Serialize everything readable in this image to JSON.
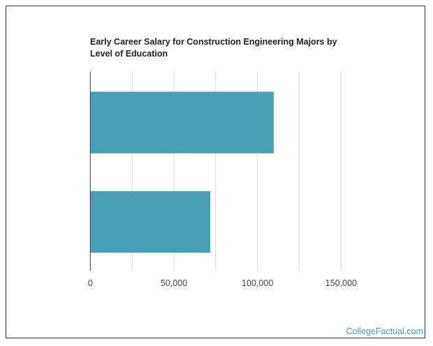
{
  "chart_data": {
    "type": "bar",
    "orientation": "horizontal",
    "title": "Early Career Salary for Construction Engineering Majors by Level of Education",
    "categories": [
      "",
      ""
    ],
    "values": [
      109700,
      71700
    ],
    "xlim": [
      0,
      150000
    ],
    "xticks": [
      0,
      50000,
      100000,
      150000
    ],
    "xtick_labels": [
      "0",
      "50,000",
      "100,000",
      "150,000"
    ],
    "gridlines": [
      25000,
      50000,
      75000,
      100000,
      125000,
      150000
    ],
    "grid": true,
    "bar_color": "#4aa0b3"
  },
  "footer": {
    "source": "CollegeFactual.com"
  }
}
